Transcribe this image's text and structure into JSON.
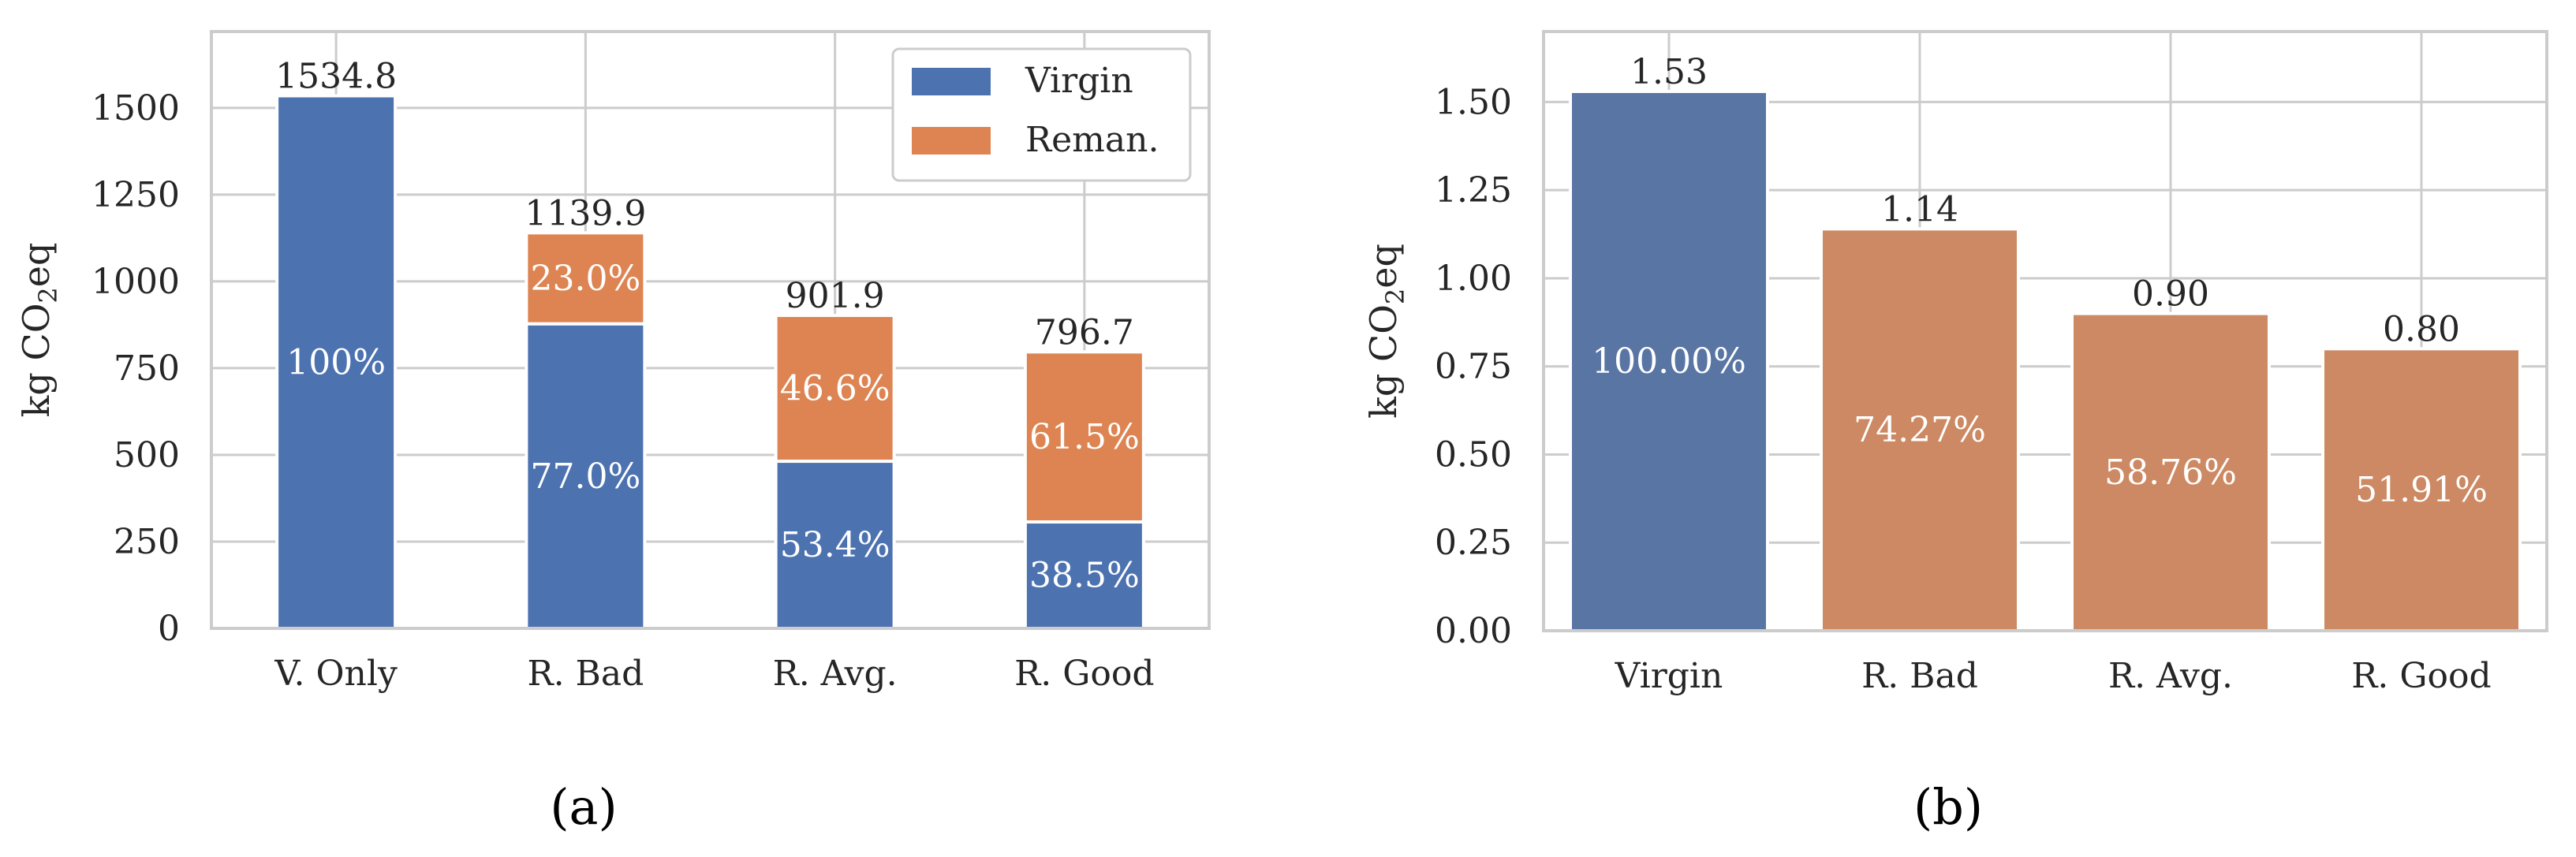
{
  "colors": {
    "virgin_a": "#4c72b0",
    "reman_a": "#dd8452",
    "virgin_b": "#5975a4",
    "reman_b": "#cc8963",
    "grid": "#cccccc",
    "frame": "#cccccc",
    "text": "#262626",
    "inner_label": "#ffffff"
  },
  "chart_data": [
    {
      "panel_label": "(a)",
      "type": "bar",
      "stacked": true,
      "ylabel_main": "kg CO",
      "ylabel_sub": "2",
      "ylabel_tail": "eq",
      "categories": [
        "V. Only",
        "R. Bad",
        "R. Avg.",
        "R. Good"
      ],
      "ylim": [
        0,
        1720
      ],
      "yticks": [
        0,
        250,
        500,
        750,
        1000,
        1250,
        1500
      ],
      "ytick_labels": [
        "0",
        "250",
        "500",
        "750",
        "1000",
        "1250",
        "1500"
      ],
      "grid": true,
      "legend": {
        "placement": "top-right",
        "entries": [
          {
            "label": "Virgin",
            "color": "#4c72b0"
          },
          {
            "label": "Reman.",
            "color": "#dd8452"
          }
        ]
      },
      "series": [
        {
          "name": "Virgin",
          "color": "#4c72b0",
          "values": [
            1534.8,
            877.7,
            481.6,
            306.7
          ],
          "labels": [
            "100%",
            "77.0%",
            "53.4%",
            "38.5%"
          ]
        },
        {
          "name": "Reman.",
          "color": "#dd8452",
          "values": [
            0,
            262.2,
            420.3,
            490.0
          ],
          "labels": [
            "",
            "23.0%",
            "46.6%",
            "61.5%"
          ]
        }
      ],
      "totals": [
        1534.8,
        1139.9,
        901.9,
        796.7
      ],
      "total_labels": [
        "1534.8",
        "1139.9",
        "901.9",
        "796.7"
      ]
    },
    {
      "panel_label": "(b)",
      "type": "bar",
      "stacked": false,
      "ylabel_main": "kg CO",
      "ylabel_sub": "2",
      "ylabel_tail": "eq",
      "categories": [
        "Virgin",
        "R. Bad",
        "R. Avg.",
        "R. Good"
      ],
      "ylim": [
        0,
        1.7
      ],
      "yticks": [
        0,
        0.25,
        0.5,
        0.75,
        1.0,
        1.25,
        1.5
      ],
      "ytick_labels": [
        "0.00",
        "0.25",
        "0.50",
        "0.75",
        "1.00",
        "1.25",
        "1.50"
      ],
      "grid": true,
      "values": [
        1.53,
        1.14,
        0.9,
        0.8
      ],
      "value_labels": [
        "1.53",
        "1.14",
        "0.90",
        "0.80"
      ],
      "inner_labels": [
        "100.00%",
        "74.27%",
        "58.76%",
        "51.91%"
      ],
      "bar_colors": [
        "#5975a4",
        "#cc8963",
        "#cc8963",
        "#cc8963"
      ]
    }
  ]
}
